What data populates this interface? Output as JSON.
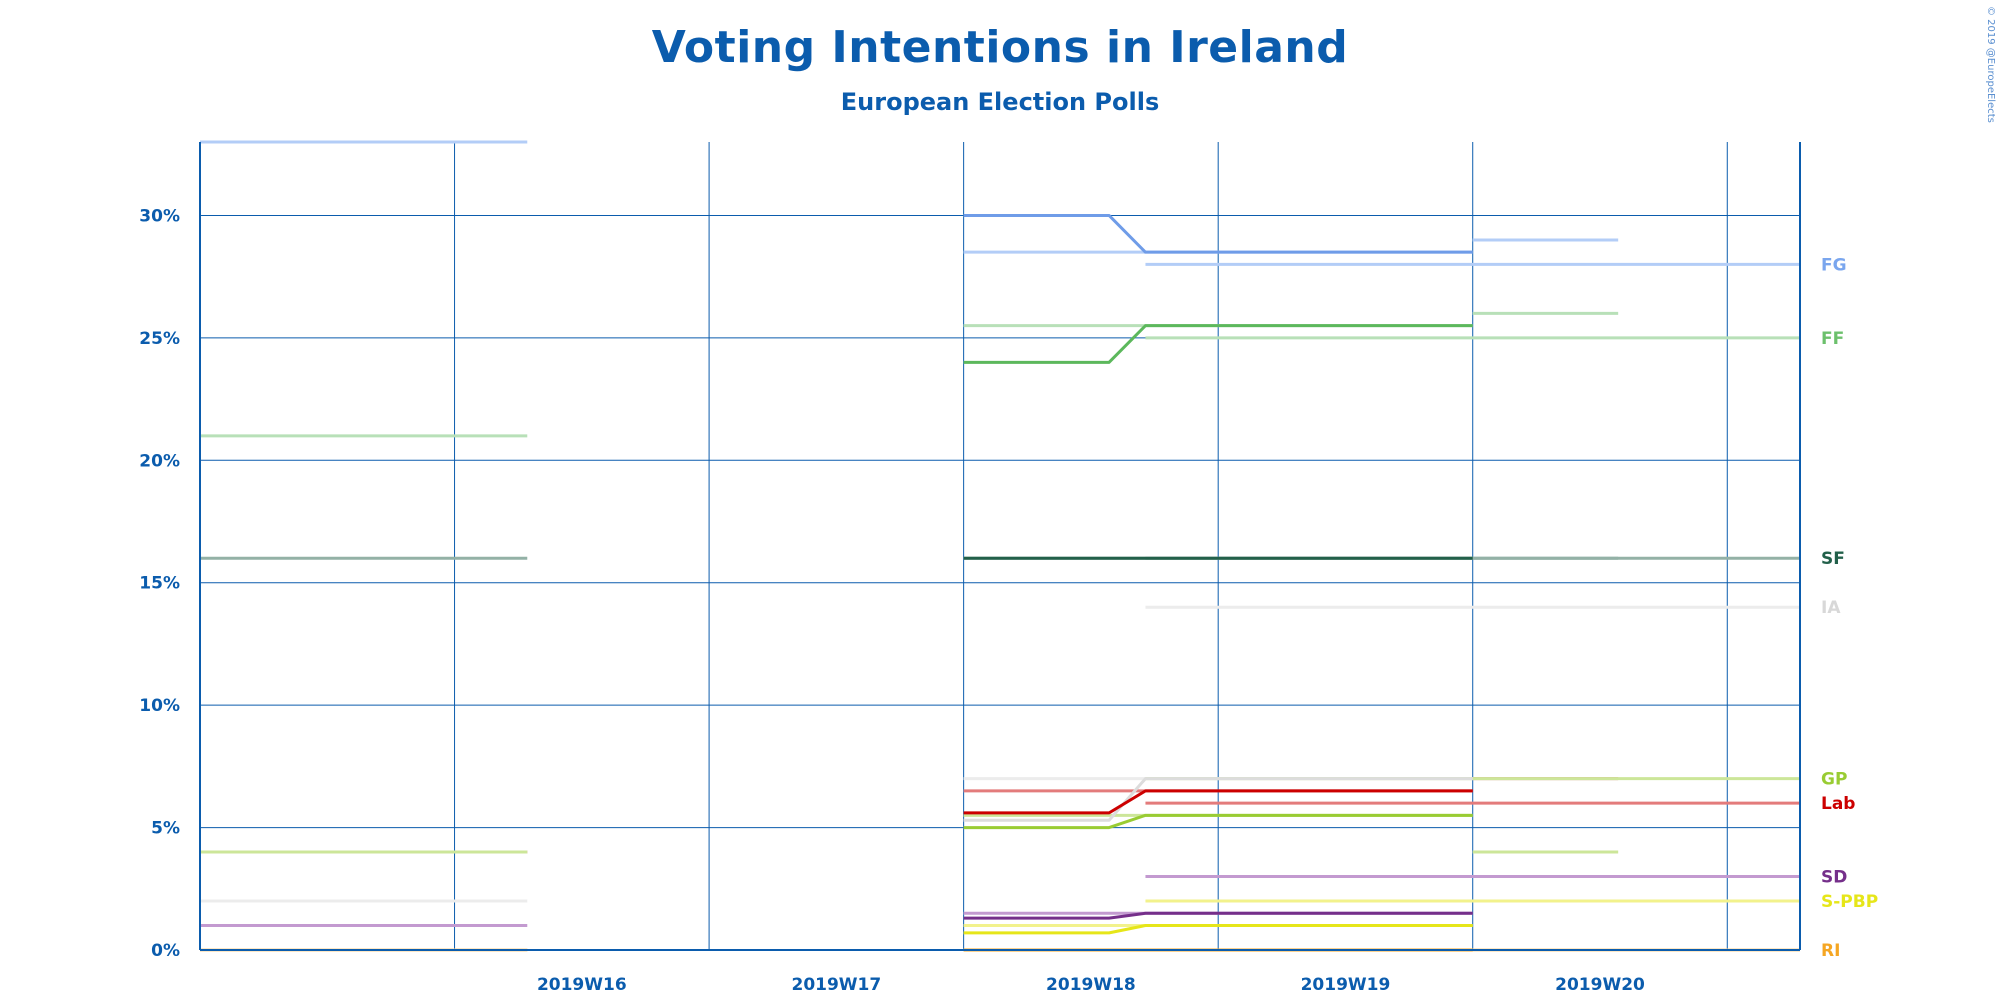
{
  "chart_data": {
    "type": "line",
    "title": "Voting Intentions in Ireland",
    "subtitle": "European Election Polls",
    "copyright": "© 2019 @EuropeElects",
    "x_axis": {
      "type": "week",
      "domain_start": "2019-04-08",
      "domain_end": "2019-05-22",
      "tick_labels": [
        "2019W16",
        "2019W17",
        "2019W18",
        "2019W19",
        "2019W20"
      ]
    },
    "y_axis": {
      "range": [
        0,
        33
      ],
      "ticks": [
        0,
        5,
        10,
        15,
        20,
        25,
        30
      ],
      "tick_labels": [
        "0%",
        "5%",
        "10%",
        "15%",
        "20%",
        "25%",
        "30%"
      ]
    },
    "grid": true,
    "legend": "right-end-labels",
    "polls": [
      {
        "start": "2019-04-08",
        "end": "2019-04-17",
        "values": {
          "FG": 33,
          "FF": 21,
          "SF": 16,
          "IA": 2,
          "Lab": 4,
          "GP": 4,
          "SD": 1,
          "S-PBP": 0,
          "RI": 0
        }
      },
      {
        "start": "2019-04-29",
        "end": "2019-05-13",
        "values": {
          "FG": 28.5,
          "FF": 25.5,
          "SF": 16,
          "IA": 7,
          "Lab": 6.5,
          "GP": 5.5,
          "SD": 1.5,
          "S-PBP": 1,
          "RI": 0
        }
      },
      {
        "start": "2019-05-13",
        "end": "2019-05-17",
        "values": {
          "FG": 29,
          "FF": 26,
          "SF": 16,
          "IA": 7,
          "Lab": 7,
          "GP": 4,
          "SD": 3,
          "S-PBP": 2,
          "RI": 0
        }
      },
      {
        "start": "2019-05-04",
        "end": "2019-05-22",
        "values": {
          "FG": 28,
          "FF": 25,
          "SF": 16,
          "IA": 14,
          "Lab": 6,
          "GP": 7,
          "SD": 3,
          "S-PBP": 2,
          "RI": 0
        }
      }
    ],
    "series": [
      {
        "name": "FG",
        "color": "#6f9ce8",
        "x": [
          "2019-04-29",
          "2019-05-03",
          "2019-05-04",
          "2019-05-13"
        ],
        "values": [
          30,
          30,
          28.5,
          28.5
        ]
      },
      {
        "name": "FF",
        "color": "#5cb85c",
        "x": [
          "2019-04-29",
          "2019-05-03",
          "2019-05-04",
          "2019-05-13"
        ],
        "values": [
          24,
          24,
          25.5,
          25.5
        ]
      },
      {
        "name": "SF",
        "color": "#22604a",
        "x": [
          "2019-04-29",
          "2019-05-03",
          "2019-05-13"
        ],
        "values": [
          16,
          16,
          16
        ]
      },
      {
        "name": "IA",
        "color": "#dcdcdc",
        "x": [
          "2019-04-29",
          "2019-05-03",
          "2019-05-04",
          "2019-05-13"
        ],
        "values": [
          5.3,
          5.3,
          7,
          7
        ]
      },
      {
        "name": "Lab",
        "color": "#cc0000",
        "x": [
          "2019-04-29",
          "2019-05-03",
          "2019-05-04",
          "2019-05-13"
        ],
        "values": [
          5.6,
          5.6,
          6.5,
          6.5
        ]
      },
      {
        "name": "GP",
        "color": "#99cc33",
        "x": [
          "2019-04-29",
          "2019-05-03",
          "2019-05-04",
          "2019-05-13"
        ],
        "values": [
          5,
          5,
          5.5,
          5.5
        ]
      },
      {
        "name": "SD",
        "color": "#752f8a",
        "x": [
          "2019-04-29",
          "2019-05-03",
          "2019-05-04",
          "2019-05-13"
        ],
        "values": [
          1.3,
          1.3,
          1.5,
          1.5
        ]
      },
      {
        "name": "S-PBP",
        "color": "#e6e619",
        "x": [
          "2019-04-29",
          "2019-05-03",
          "2019-05-04",
          "2019-05-13"
        ],
        "values": [
          0.7,
          0.7,
          1,
          1
        ]
      },
      {
        "name": "RI",
        "color": "#f5a623",
        "x": [
          "2019-04-29",
          "2019-05-13"
        ],
        "values": [
          0,
          0
        ]
      }
    ],
    "end_labels": [
      {
        "name": "FG",
        "color": "#7aa6ee"
      },
      {
        "name": "FF",
        "color": "#6cc06c"
      },
      {
        "name": "SF",
        "color": "#22604a"
      },
      {
        "name": "IA",
        "color": "#d8d8d8"
      },
      {
        "name": "Lab",
        "color": "#cc0000"
      },
      {
        "name": "GP",
        "color": "#99cc33"
      },
      {
        "name": "SD",
        "color": "#752f8a"
      },
      {
        "name": "S-PBP",
        "color": "#e6e619"
      },
      {
        "name": "RI",
        "color": "#f5a623"
      }
    ],
    "poll_colors": {
      "FG": "#b3cdf7",
      "FF": "#b8e0b8",
      "SF": "#93b1a6",
      "IA": "#ececec",
      "Lab": "#e37b7b",
      "GP": "#cce699",
      "SD": "#c39ad0",
      "S-PBP": "#f2f28c",
      "RI": "#f8cf8e"
    }
  }
}
